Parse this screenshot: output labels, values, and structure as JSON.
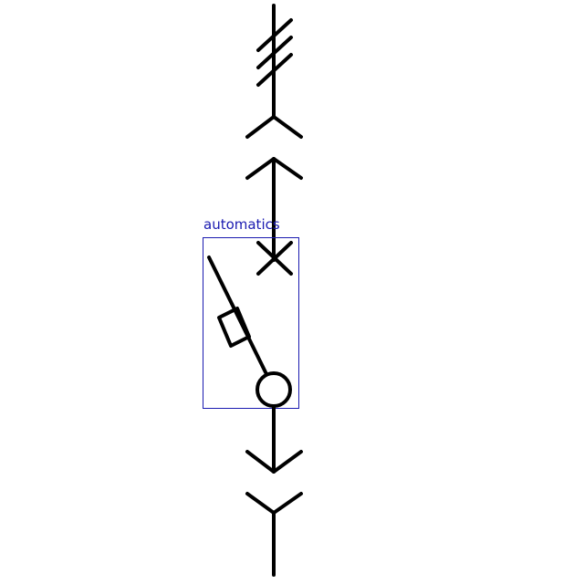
{
  "annotation": {
    "label": "automatics"
  },
  "colors": {
    "line": "#000000",
    "annotation": "#1a1ab0",
    "background": "#ffffff"
  },
  "symbols": [
    "three-phase-marker",
    "plug-connector",
    "socket-connector",
    "circuit-breaker",
    "arrow-connector",
    "fork-connector"
  ]
}
